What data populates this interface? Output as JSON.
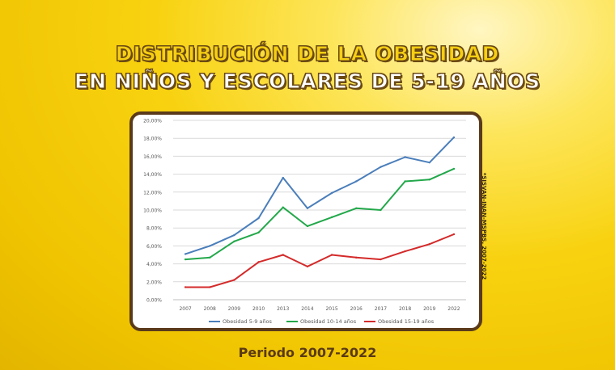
{
  "title": {
    "line1": "DISTRIBUCIÓN DE LA OBESIDAD",
    "line2": "EN NIÑOS Y ESCOLARES DE 5-19 AÑOS"
  },
  "source_note": "*SISVAN-INAN-MSPBS, 2007-2022",
  "footer": "Periodo 2007-2022",
  "colors": {
    "background": "#f8d210",
    "card_border": "#5a3a1a",
    "series_5_9": "#4a7ebb",
    "series_10_14": "#22a84a",
    "series_15_19": "#d42a2a"
  },
  "chart_data": {
    "type": "line",
    "title": "",
    "xlabel": "",
    "ylabel": "",
    "categories": [
      "2007",
      "2008",
      "2009",
      "2010",
      "2013",
      "2014",
      "2015",
      "2016",
      "2017",
      "2018",
      "2019",
      "2022"
    ],
    "ylim": [
      0,
      20
    ],
    "y_ticks": [
      "0,00%",
      "2,00%",
      "4,00%",
      "6,00%",
      "8,00%",
      "10,00%",
      "12,00%",
      "14,00%",
      "16,00%",
      "18,00%",
      "20,00%"
    ],
    "grid": true,
    "legend_position": "bottom",
    "series": [
      {
        "name": "Obesidad 5-9 años",
        "color": "#4a7ebb",
        "values": [
          5.1,
          6.0,
          7.2,
          9.1,
          13.6,
          10.2,
          11.9,
          13.2,
          14.8,
          15.9,
          15.3,
          18.1
        ]
      },
      {
        "name": "Obesidad 10-14 años",
        "color": "#22a84a",
        "values": [
          4.5,
          4.7,
          6.5,
          7.5,
          10.3,
          8.2,
          9.2,
          10.2,
          10.0,
          13.2,
          13.4,
          14.6
        ]
      },
      {
        "name": "Obesidad 15-19 años",
        "color": "#d42a2a",
        "values": [
          1.4,
          1.4,
          2.2,
          4.2,
          5.0,
          3.7,
          5.0,
          4.7,
          4.5,
          5.4,
          6.2,
          7.3
        ]
      }
    ]
  }
}
